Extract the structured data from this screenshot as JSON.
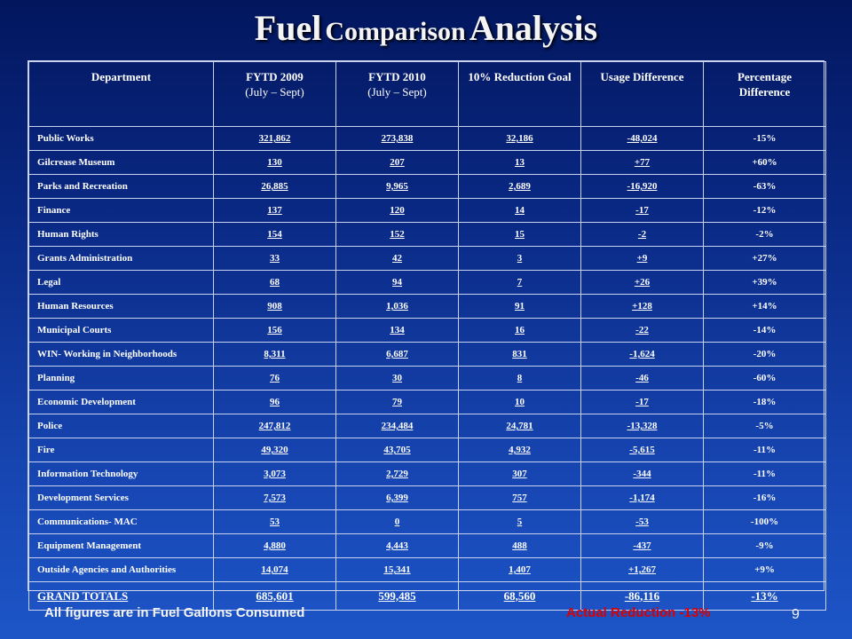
{
  "title": {
    "word1": "Fuel",
    "word2": "Comparison",
    "word3": "Analysis"
  },
  "headers": {
    "department": "Department",
    "fytd2009": "FYTD 2009",
    "fytd2009_range": "(July – Sept)",
    "fytd2010": "FYTD 2010",
    "fytd2010_range": "(July – Sept)",
    "reduction_goal": "10% Reduction Goal",
    "usage_difference": "Usage Difference",
    "percentage_line1": "Percentage",
    "percentage_line2": "Difference"
  },
  "rows": [
    {
      "dept": "Public Works",
      "fy2009": "321,862",
      "fy2010": "273,838",
      "goal": "32,186",
      "usage": "-48,024",
      "pct": "-15%"
    },
    {
      "dept": "Gilcrease Museum",
      "fy2009": "130",
      "fy2010": "207",
      "goal": "13",
      "usage": "+77",
      "pct": "+60%"
    },
    {
      "dept": "Parks and Recreation",
      "fy2009": "26,885",
      "fy2010": "9,965",
      "goal": "2,689",
      "usage": "-16,920",
      "pct": "-63%"
    },
    {
      "dept": "Finance",
      "fy2009": "137",
      "fy2010": "120",
      "goal": "14",
      "usage": "-17",
      "pct": "-12%"
    },
    {
      "dept": "Human Rights",
      "fy2009": "154",
      "fy2010": "152",
      "goal": "15",
      "usage": "-2",
      "pct": "-2%"
    },
    {
      "dept": "Grants Administration",
      "fy2009": "33",
      "fy2010": "42",
      "goal": "3",
      "usage": "+9",
      "pct": "+27%"
    },
    {
      "dept": "Legal",
      "fy2009": "68",
      "fy2010": "94",
      "goal": "7",
      "usage": "+26",
      "pct": "+39%"
    },
    {
      "dept": "Human Resources",
      "fy2009": "908",
      "fy2010": "1,036",
      "goal": "91",
      "usage": "+128",
      "pct": "+14%"
    },
    {
      "dept": "Municipal Courts",
      "fy2009": "156",
      "fy2010": "134",
      "goal": "16",
      "usage": "-22",
      "pct": "-14%"
    },
    {
      "dept": "WIN- Working in Neighborhoods",
      "fy2009": "8,311",
      "fy2010": "6,687",
      "goal": "831",
      "usage": "-1,624",
      "pct": "-20%"
    },
    {
      "dept": "Planning",
      "fy2009": "76",
      "fy2010": "30",
      "goal": "8",
      "usage": "-46",
      "pct": "-60%"
    },
    {
      "dept": "Economic Development",
      "fy2009": "96",
      "fy2010": "79",
      "goal": "10",
      "usage": "-17",
      "pct": "-18%"
    },
    {
      "dept": "Police",
      "fy2009": "247,812",
      "fy2010": "234,484",
      "goal": "24,781",
      "usage": "-13,328",
      "pct": "-5%"
    },
    {
      "dept": "Fire",
      "fy2009": "49,320",
      "fy2010": "43,705",
      "goal": "4,932",
      "usage": "-5,615",
      "pct": "-11%"
    },
    {
      "dept": "Information Technology",
      "fy2009": "3,073",
      "fy2010": "2,729",
      "goal": "307",
      "usage": "-344",
      "pct": "-11%"
    },
    {
      "dept": "Development Services",
      "fy2009": "7,573",
      "fy2010": "6,399",
      "goal": "757",
      "usage": "-1,174",
      "pct": "-16%"
    },
    {
      "dept": "Communications- MAC",
      "fy2009": "53",
      "fy2010": "0",
      "goal": "5",
      "usage": "-53",
      "pct": "-100%"
    },
    {
      "dept": "Equipment Management",
      "fy2009": "4,880",
      "fy2010": "4,443",
      "goal": "488",
      "usage": "-437",
      "pct": "-9%"
    },
    {
      "dept": "Outside Agencies and Authorities",
      "fy2009": "14,074",
      "fy2010": "15,341",
      "goal": "1,407",
      "usage": "+1,267",
      "pct": "+9%"
    }
  ],
  "totals": {
    "dept": "GRAND TOTALS",
    "fy2009": "685,601",
    "fy2010": "599,485",
    "goal": "68,560",
    "usage": "-86,116",
    "pct": "-13%"
  },
  "footnote": "All figures are in Fuel Gallons Consumed",
  "actual_reduction": "Actual Reduction  -13%",
  "page_number": "9",
  "colors": {
    "background": "#0a2a86",
    "text": "#ffffff",
    "reduction_text": "#d80000",
    "grid": "#c8d2ee"
  }
}
